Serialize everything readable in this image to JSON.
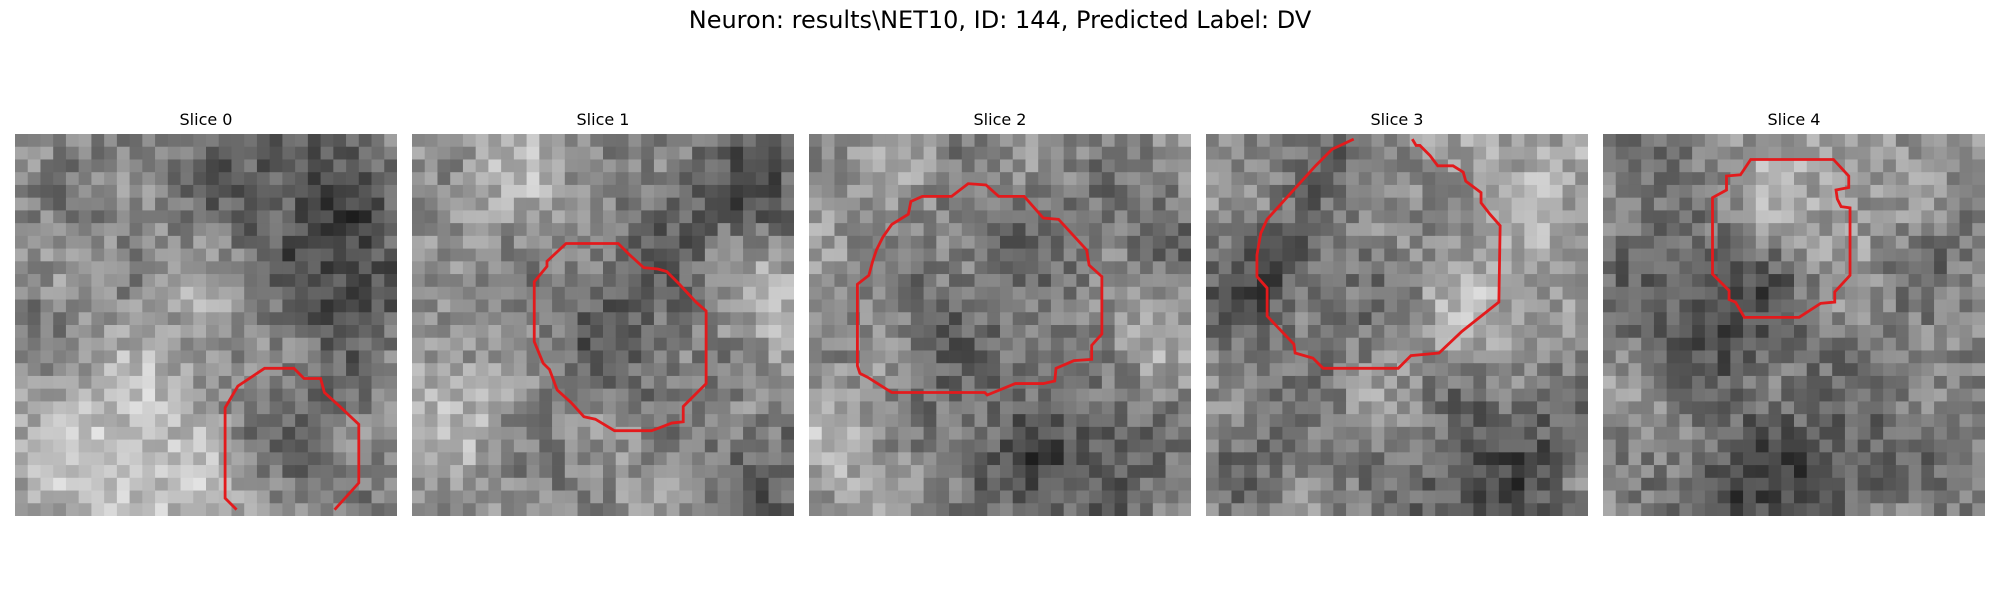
{
  "figure": {
    "title": "Neuron: results\\NET10, ID: 144, Predicted Label: DV",
    "contour_color": "#e31a1c",
    "colormap": "gray",
    "panels": [
      {
        "title": "Slice 0"
      },
      {
        "title": "Slice 1"
      },
      {
        "title": "Slice 2"
      },
      {
        "title": "Slice 3"
      },
      {
        "title": "Slice 4"
      }
    ]
  }
}
